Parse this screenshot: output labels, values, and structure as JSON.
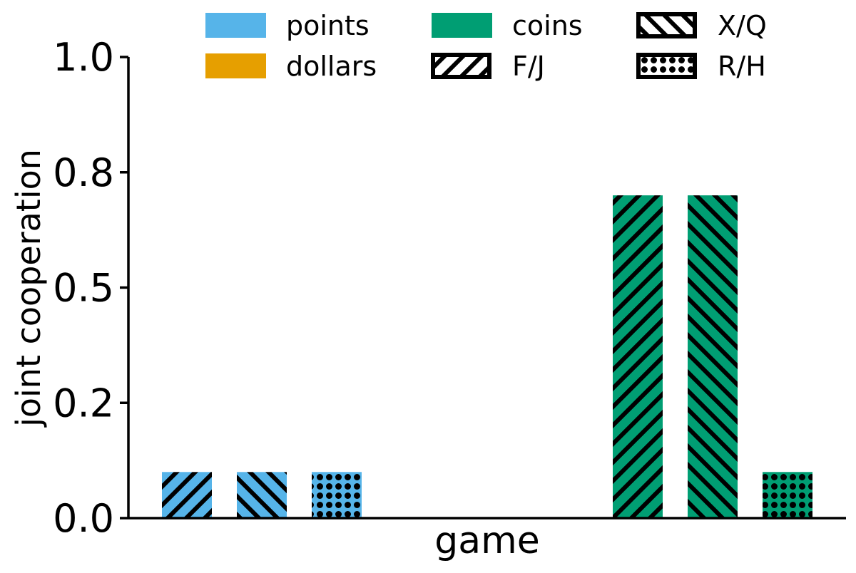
{
  "chart_data": {
    "type": "bar",
    "title": "",
    "xlabel": "game",
    "ylabel": "joint cooperation",
    "ylim": [
      0,
      1
    ],
    "yticks": [
      {
        "value": 0.0,
        "label": "0.0"
      },
      {
        "value": 0.25,
        "label": "0.2"
      },
      {
        "value": 0.5,
        "label": "0.5"
      },
      {
        "value": 0.75,
        "label": "0.8"
      },
      {
        "value": 1.0,
        "label": "1.0"
      }
    ],
    "grid": false,
    "legend_position": "top",
    "payoff_colors": {
      "points": "#56b4e9",
      "dollars": "#e69f00",
      "coins": "#009e73"
    },
    "hatches": {
      "F/J": "forward-diagonal",
      "X/Q": "backward-diagonal",
      "R/H": "dots"
    },
    "legend": [
      {
        "label": "points",
        "kind": "color",
        "key": "points"
      },
      {
        "label": "dollars",
        "kind": "color",
        "key": "dollars"
      },
      {
        "label": "coins",
        "kind": "color",
        "key": "coins"
      },
      {
        "label": "F/J",
        "kind": "hatch",
        "key": "F/J"
      },
      {
        "label": "X/Q",
        "kind": "hatch",
        "key": "X/Q"
      },
      {
        "label": "R/H",
        "kind": "hatch",
        "key": "R/H"
      }
    ],
    "bars": [
      {
        "payoff": "points",
        "labels": "F/J",
        "value": 0.1
      },
      {
        "payoff": "points",
        "labels": "X/Q",
        "value": 0.1
      },
      {
        "payoff": "points",
        "labels": "R/H",
        "value": 0.1
      },
      {
        "payoff": "dollars",
        "labels": "F/J",
        "value": 0.0
      },
      {
        "payoff": "dollars",
        "labels": "X/Q",
        "value": 0.0
      },
      {
        "payoff": "dollars",
        "labels": "R/H",
        "value": 0.0
      },
      {
        "payoff": "coins",
        "labels": "F/J",
        "value": 0.7
      },
      {
        "payoff": "coins",
        "labels": "X/Q",
        "value": 0.7
      },
      {
        "payoff": "coins",
        "labels": "R/H",
        "value": 0.1
      }
    ]
  }
}
